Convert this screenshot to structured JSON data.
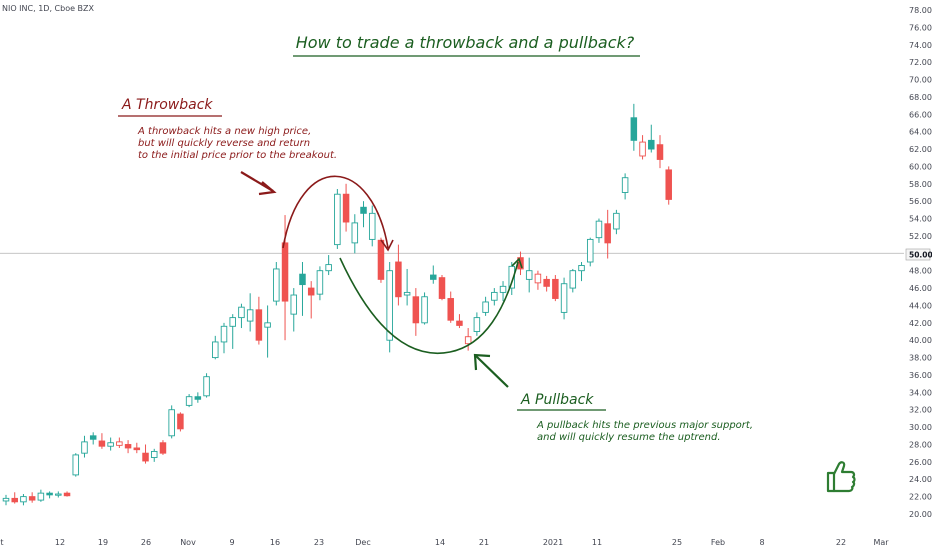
{
  "symbol_line": "NIO INC, 1D, Cboe BZX",
  "colors": {
    "up": "#26a69a",
    "down": "#ef5350",
    "hollow_up_stroke": "#26a69a",
    "pink": "#f48fb1",
    "green_text": "#1b5e20",
    "red_text": "#8b1a1a",
    "axis_text": "#434651",
    "price_line": "#bdbdbd",
    "marker_bg": "#f5f5f5"
  },
  "title": "How to trade a throwback and a pullback?",
  "throwback": {
    "heading": "A Throwback",
    "lines": [
      "A throwback hits a new high price,",
      "but will quickly reverse and return",
      "to the initial price prior to the breakout."
    ]
  },
  "pullback": {
    "heading": "A Pullback",
    "lines": [
      "A pullback hits the previous major support,",
      "and will quickly resume the uptrend."
    ]
  },
  "price_marker": "50.00",
  "chart_data": {
    "type": "candlestick",
    "y_ticks": [
      "78.00",
      "76.00",
      "74.00",
      "72.00",
      "70.00",
      "68.00",
      "66.00",
      "64.00",
      "62.00",
      "60.00",
      "58.00",
      "56.00",
      "54.00",
      "52.00",
      "50.00",
      "48.00",
      "46.00",
      "44.00",
      "42.00",
      "40.00",
      "38.00",
      "36.00",
      "34.00",
      "32.00",
      "30.00",
      "28.00",
      "26.00",
      "24.00",
      "22.00",
      "20.00"
    ],
    "x_ticks": [
      "t",
      "12",
      "19",
      "26",
      "Nov",
      "9",
      "16",
      "23",
      "Dec",
      "14",
      "21",
      "2021",
      "11",
      "25",
      "Feb",
      "8",
      "22",
      "Mar"
    ],
    "ylim": [
      19,
      79
    ],
    "horizontal_line": 50,
    "candles": [
      {
        "o": 21.5,
        "h": 22.2,
        "l": 21.0,
        "c": 21.8,
        "t": "up_hollow"
      },
      {
        "o": 21.8,
        "h": 22.5,
        "l": 21.2,
        "c": 21.4,
        "t": "down"
      },
      {
        "o": 21.4,
        "h": 22.3,
        "l": 21.0,
        "c": 22.0,
        "t": "up_hollow"
      },
      {
        "o": 22.0,
        "h": 22.5,
        "l": 21.3,
        "c": 21.6,
        "t": "down"
      },
      {
        "o": 21.6,
        "h": 22.8,
        "l": 21.4,
        "c": 22.4,
        "t": "up_hollow"
      },
      {
        "o": 22.4,
        "h": 22.6,
        "l": 21.8,
        "c": 22.2,
        "t": "up_solid"
      },
      {
        "o": 22.2,
        "h": 22.6,
        "l": 21.9,
        "c": 22.3,
        "t": "up_hollow"
      },
      {
        "o": 22.4,
        "h": 22.6,
        "l": 22.0,
        "c": 22.1,
        "t": "down"
      },
      {
        "o": 24.5,
        "h": 27.0,
        "l": 24.3,
        "c": 26.8,
        "t": "up_hollow"
      },
      {
        "o": 27.0,
        "h": 29.0,
        "l": 26.5,
        "c": 28.3,
        "t": "up_hollow"
      },
      {
        "o": 28.6,
        "h": 29.4,
        "l": 28.0,
        "c": 29.0,
        "t": "up_solid"
      },
      {
        "o": 28.4,
        "h": 29.3,
        "l": 27.5,
        "c": 27.8,
        "t": "down"
      },
      {
        "o": 27.8,
        "h": 28.8,
        "l": 27.3,
        "c": 28.2,
        "t": "up_hollow"
      },
      {
        "o": 28.3,
        "h": 28.8,
        "l": 27.6,
        "c": 27.9,
        "t": "down_pink"
      },
      {
        "o": 28.0,
        "h": 28.5,
        "l": 27.0,
        "c": 27.6,
        "t": "down"
      },
      {
        "o": 27.6,
        "h": 28.2,
        "l": 27.0,
        "c": 27.4,
        "t": "down"
      },
      {
        "o": 27.0,
        "h": 28.0,
        "l": 25.8,
        "c": 26.1,
        "t": "down"
      },
      {
        "o": 26.5,
        "h": 27.5,
        "l": 26.0,
        "c": 27.2,
        "t": "up_hollow"
      },
      {
        "o": 27.0,
        "h": 28.5,
        "l": 26.8,
        "c": 28.2,
        "t": "down"
      },
      {
        "o": 29.0,
        "h": 32.5,
        "l": 28.7,
        "c": 32.0,
        "t": "up_hollow"
      },
      {
        "o": 31.5,
        "h": 31.7,
        "l": 29.5,
        "c": 29.8,
        "t": "down"
      },
      {
        "o": 32.5,
        "h": 33.8,
        "l": 32.3,
        "c": 33.5,
        "t": "up_hollow"
      },
      {
        "o": 33.5,
        "h": 34.0,
        "l": 32.8,
        "c": 33.2,
        "t": "up_solid"
      },
      {
        "o": 33.6,
        "h": 36.2,
        "l": 33.4,
        "c": 35.8,
        "t": "up_hollow"
      },
      {
        "o": 38.0,
        "h": 40.5,
        "l": 37.8,
        "c": 39.8,
        "t": "up_hollow"
      },
      {
        "o": 39.8,
        "h": 42.0,
        "l": 38.5,
        "c": 41.6,
        "t": "up_hollow"
      },
      {
        "o": 41.6,
        "h": 43.0,
        "l": 39.0,
        "c": 42.6,
        "t": "up_hollow"
      },
      {
        "o": 42.6,
        "h": 44.2,
        "l": 41.4,
        "c": 43.8,
        "t": "up_hollow"
      },
      {
        "o": 43.5,
        "h": 45.4,
        "l": 41.0,
        "c": 42.2,
        "t": "up_hollow"
      },
      {
        "o": 43.5,
        "h": 45.0,
        "l": 39.5,
        "c": 40.0,
        "t": "down"
      },
      {
        "o": 41.5,
        "h": 44.0,
        "l": 38.0,
        "c": 42.0,
        "t": "up_hollow"
      },
      {
        "o": 44.5,
        "h": 49.0,
        "l": 44.0,
        "c": 48.2,
        "t": "up_hollow"
      },
      {
        "o": 51.2,
        "h": 54.4,
        "l": 40.0,
        "c": 44.5,
        "t": "down"
      },
      {
        "o": 43.0,
        "h": 46.0,
        "l": 41.0,
        "c": 45.2,
        "t": "up_hollow"
      },
      {
        "o": 46.4,
        "h": 49.0,
        "l": 42.8,
        "c": 47.6,
        "t": "up_solid"
      },
      {
        "o": 46.0,
        "h": 46.8,
        "l": 42.5,
        "c": 45.2,
        "t": "down"
      },
      {
        "o": 45.3,
        "h": 48.5,
        "l": 44.6,
        "c": 48.0,
        "t": "up_hollow"
      },
      {
        "o": 48.0,
        "h": 49.8,
        "l": 47.5,
        "c": 48.7,
        "t": "up_hollow"
      },
      {
        "o": 51.0,
        "h": 57.4,
        "l": 50.5,
        "c": 56.8,
        "t": "up_hollow"
      },
      {
        "o": 56.8,
        "h": 58.0,
        "l": 52.5,
        "c": 53.6,
        "t": "down"
      },
      {
        "o": 53.5,
        "h": 54.5,
        "l": 50.0,
        "c": 51.2,
        "t": "up_hollow"
      },
      {
        "o": 55.3,
        "h": 56.0,
        "l": 53.0,
        "c": 54.6,
        "t": "up_solid"
      },
      {
        "o": 54.6,
        "h": 55.5,
        "l": 50.8,
        "c": 51.6,
        "t": "up_hollow"
      },
      {
        "o": 51.5,
        "h": 51.8,
        "l": 46.6,
        "c": 47.0,
        "t": "down"
      },
      {
        "o": 48.0,
        "h": 49.0,
        "l": 38.6,
        "c": 40.0,
        "t": "up_hollow"
      },
      {
        "o": 49.0,
        "h": 51.0,
        "l": 44.0,
        "c": 45.0,
        "t": "down"
      },
      {
        "o": 45.2,
        "h": 48.2,
        "l": 44.0,
        "c": 45.5,
        "t": "up_hollow"
      },
      {
        "o": 45.0,
        "h": 46.0,
        "l": 40.5,
        "c": 42.0,
        "t": "down"
      },
      {
        "o": 42.0,
        "h": 45.5,
        "l": 41.8,
        "c": 45.0,
        "t": "up_hollow"
      },
      {
        "o": 47.0,
        "h": 48.6,
        "l": 46.5,
        "c": 47.5,
        "t": "up_solid"
      },
      {
        "o": 47.2,
        "h": 47.5,
        "l": 44.6,
        "c": 44.8,
        "t": "down"
      },
      {
        "o": 44.8,
        "h": 45.6,
        "l": 42.0,
        "c": 42.3,
        "t": "down"
      },
      {
        "o": 42.2,
        "h": 43.0,
        "l": 41.4,
        "c": 41.7,
        "t": "down"
      },
      {
        "o": 40.4,
        "h": 41.4,
        "l": 38.8,
        "c": 39.6,
        "t": "down_pink"
      },
      {
        "o": 41.0,
        "h": 43.2,
        "l": 40.5,
        "c": 42.6,
        "t": "up_hollow"
      },
      {
        "o": 43.2,
        "h": 45.0,
        "l": 42.8,
        "c": 44.4,
        "t": "up_hollow"
      },
      {
        "o": 44.6,
        "h": 46.0,
        "l": 44.0,
        "c": 45.5,
        "t": "up_hollow"
      },
      {
        "o": 45.5,
        "h": 46.8,
        "l": 44.5,
        "c": 46.2,
        "t": "up_hollow"
      },
      {
        "o": 46.0,
        "h": 49.0,
        "l": 45.2,
        "c": 48.5,
        "t": "up_hollow"
      },
      {
        "o": 49.5,
        "h": 50.2,
        "l": 47.5,
        "c": 48.2,
        "t": "down"
      },
      {
        "o": 48.0,
        "h": 49.5,
        "l": 45.5,
        "c": 47.0,
        "t": "up_hollow"
      },
      {
        "o": 47.6,
        "h": 48.0,
        "l": 45.8,
        "c": 46.6,
        "t": "down_pink"
      },
      {
        "o": 47.0,
        "h": 47.4,
        "l": 45.6,
        "c": 46.2,
        "t": "down"
      },
      {
        "o": 47.0,
        "h": 47.5,
        "l": 44.5,
        "c": 44.8,
        "t": "down"
      },
      {
        "o": 43.2,
        "h": 47.2,
        "l": 42.4,
        "c": 46.5,
        "t": "up_hollow"
      },
      {
        "o": 46.0,
        "h": 48.2,
        "l": 45.5,
        "c": 48.0,
        "t": "up_hollow"
      },
      {
        "o": 48.0,
        "h": 49.0,
        "l": 46.8,
        "c": 48.6,
        "t": "up_hollow"
      },
      {
        "o": 49.0,
        "h": 51.8,
        "l": 48.5,
        "c": 51.6,
        "t": "up_hollow"
      },
      {
        "o": 51.8,
        "h": 54.0,
        "l": 51.2,
        "c": 53.7,
        "t": "up_hollow"
      },
      {
        "o": 53.4,
        "h": 55.0,
        "l": 49.4,
        "c": 51.2,
        "t": "down"
      },
      {
        "o": 52.8,
        "h": 55.0,
        "l": 52.2,
        "c": 54.6,
        "t": "up_hollow"
      },
      {
        "o": 57.0,
        "h": 59.2,
        "l": 56.2,
        "c": 58.7,
        "t": "up_hollow"
      },
      {
        "o": 63.0,
        "h": 67.2,
        "l": 61.8,
        "c": 65.6,
        "t": "up_solid"
      },
      {
        "o": 62.8,
        "h": 63.6,
        "l": 60.8,
        "c": 61.2,
        "t": "down_pink"
      },
      {
        "o": 62.0,
        "h": 64.8,
        "l": 61.6,
        "c": 63.0,
        "t": "up_solid"
      },
      {
        "o": 62.5,
        "h": 63.6,
        "l": 59.8,
        "c": 60.8,
        "t": "down"
      },
      {
        "o": 59.6,
        "h": 60.0,
        "l": 55.6,
        "c": 56.2,
        "t": "down"
      }
    ]
  }
}
